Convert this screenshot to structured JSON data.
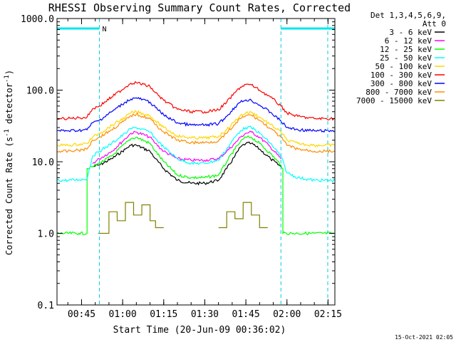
{
  "chart_data": {
    "type": "line",
    "title": "RHESSI Observing Summary Count Rates, Corrected",
    "xlabel": "Start Time (20-Jun-09 00:36:02)",
    "ylabel_main": "Corrected Count Rate (s",
    "ylabel_sup1": "-1",
    "ylabel_mid": " detector",
    "ylabel_sup2": "-1",
    "ylabel_end": ")",
    "y_scale": "log",
    "ylim": [
      0.1,
      1000
    ],
    "xlim_minutes": [
      36.03,
      137.5
    ],
    "y_ticks": [
      {
        "value": 0.1,
        "label": "0.1"
      },
      {
        "value": 1,
        "label": "1.0"
      },
      {
        "value": 10,
        "label": "10.0"
      },
      {
        "value": 100,
        "label": "100.0"
      },
      {
        "value": 1000,
        "label": "1000.0"
      }
    ],
    "x_ticks": [
      {
        "value": 45,
        "label": "00:45"
      },
      {
        "value": 60,
        "label": "01:00"
      },
      {
        "value": 75,
        "label": "01:15"
      },
      {
        "value": 90,
        "label": "01:30"
      },
      {
        "value": 105,
        "label": "01:45"
      },
      {
        "value": 120,
        "label": "02:00"
      },
      {
        "value": 135,
        "label": "02:15"
      }
    ],
    "legend_header": [
      "Det 1,3,4,5,6,9,",
      "Att 0"
    ],
    "legend_position": "right",
    "night_periods": [
      [
        36.03,
        51.5
      ],
      [
        117.8,
        137.5
      ]
    ],
    "night_marker": "N",
    "saa_lines": [
      36.03,
      51.5,
      117.8,
      134.9
    ],
    "series": [
      {
        "name": "3 - 6 keV",
        "color": "#000000",
        "x": [
          36.03,
          47.0,
          49.0,
          51.5,
          56,
          61,
          63,
          65,
          70,
          72,
          75,
          80,
          85,
          90,
          95,
          98,
          101,
          103,
          105,
          107,
          110,
          114,
          117.8,
          120,
          123,
          127,
          132,
          137.5
        ],
        "y": [
          null,
          null,
          8.5,
          9,
          11,
          15,
          17,
          17,
          14,
          11,
          8,
          5.5,
          5.0,
          5.0,
          5.5,
          8,
          12,
          16,
          18,
          18,
          15,
          11,
          8.5,
          null,
          null,
          null,
          null,
          null
        ]
      },
      {
        "name": "6 - 12 keV",
        "color": "#ff00ff",
        "x": [
          36.03,
          47.0,
          49.0,
          51.5,
          56,
          61,
          63,
          65,
          70,
          72,
          75,
          80,
          85,
          90,
          95,
          98,
          101,
          103,
          105,
          107,
          110,
          114,
          117.8,
          120,
          123,
          127,
          132,
          137.5
        ],
        "y": [
          null,
          null,
          9.5,
          11,
          14,
          21,
          25,
          26,
          22,
          18,
          14,
          11,
          10.5,
          10.5,
          11,
          14,
          18,
          22,
          25,
          26,
          22,
          16,
          11,
          null,
          null,
          null,
          null,
          null
        ]
      },
      {
        "name": "12 - 25 keV",
        "color": "#00ff00",
        "x": [
          36.03,
          44.0,
          47.0,
          47.01,
          49.0,
          51.5,
          56,
          61,
          63,
          65,
          70,
          72,
          75,
          80,
          85,
          90,
          95,
          98,
          101,
          103,
          105,
          107,
          110,
          114,
          117.8,
          118.5,
          118.51,
          124,
          130,
          137.5
        ],
        "y": [
          1.0,
          1.0,
          1.0,
          8,
          8.5,
          9.5,
          12,
          18,
          21,
          22,
          18,
          14,
          10,
          6.5,
          6.0,
          6.0,
          6.5,
          10,
          15,
          19,
          22,
          22,
          18,
          13,
          9,
          8,
          1.0,
          1.0,
          1.0,
          1.0
        ]
      },
      {
        "name": "25 - 50 keV",
        "color": "#00ffff",
        "x": [
          36.03,
          40,
          44,
          47.0,
          49.0,
          51.5,
          56,
          61,
          63,
          65,
          70,
          72,
          75,
          80,
          85,
          90,
          95,
          98,
          101,
          103,
          105,
          107,
          110,
          114,
          117.8,
          120,
          124,
          130,
          137.5
        ],
        "y": [
          5.5,
          5.5,
          5.6,
          5.8,
          12,
          14,
          18,
          25,
          29,
          30,
          26,
          21,
          16,
          11,
          9.5,
          9.5,
          10.5,
          15,
          22,
          27,
          30,
          30,
          25,
          18,
          12,
          7,
          6,
          5.5,
          5.5
        ]
      },
      {
        "name": "50 - 100 keV",
        "color": "#ffd700",
        "x": [
          36.03,
          40,
          44,
          47.0,
          49.0,
          51.5,
          56,
          61,
          63,
          65,
          70,
          72,
          75,
          80,
          85,
          90,
          95,
          98,
          101,
          103,
          105,
          107,
          110,
          114,
          117.8,
          120,
          124,
          130,
          137.5
        ],
        "y": [
          17,
          17,
          17.5,
          18,
          22,
          25,
          32,
          42,
          48,
          50,
          44,
          37,
          30,
          23,
          21.5,
          21.5,
          22.5,
          28,
          37,
          44,
          48,
          49,
          42,
          33,
          26,
          20,
          18,
          17,
          17
        ]
      },
      {
        "name": "100 - 300 keV",
        "color": "#ff0000",
        "x": [
          36.03,
          40,
          44,
          47.0,
          49.0,
          51.5,
          56,
          61,
          63,
          65,
          70,
          72,
          75,
          80,
          85,
          90,
          95,
          98,
          101,
          103,
          105,
          107,
          110,
          114,
          117.8,
          120,
          124,
          130,
          137.5
        ],
        "y": [
          40,
          40,
          41,
          42,
          55,
          60,
          80,
          110,
          125,
          128,
          112,
          92,
          72,
          54,
          50,
          50,
          53,
          68,
          92,
          110,
          120,
          118,
          100,
          80,
          60,
          48,
          43,
          40,
          40
        ]
      },
      {
        "name": "300 - 800 keV",
        "color": "#0000ff",
        "x": [
          36.03,
          40,
          44,
          47.0,
          49.0,
          51.5,
          56,
          61,
          63,
          65,
          70,
          72,
          75,
          80,
          85,
          90,
          95,
          98,
          101,
          103,
          105,
          107,
          110,
          114,
          117.8,
          120,
          124,
          130,
          137.5
        ],
        "y": [
          27,
          27,
          27.5,
          28,
          35,
          38,
          50,
          68,
          75,
          78,
          68,
          57,
          45,
          35,
          32.5,
          32.5,
          34,
          43,
          58,
          68,
          73,
          72,
          62,
          49,
          37,
          30,
          28,
          27,
          27
        ]
      },
      {
        "name": "800 - 7000 keV",
        "color": "#ff8c00",
        "x": [
          36.03,
          40,
          44,
          47.0,
          49.0,
          51.5,
          56,
          61,
          63,
          65,
          70,
          72,
          75,
          80,
          85,
          90,
          95,
          98,
          101,
          103,
          105,
          107,
          110,
          114,
          117.8,
          120,
          124,
          130,
          137.5
        ],
        "y": [
          14,
          14,
          14.5,
          15,
          20,
          22,
          28,
          38,
          44,
          46,
          40,
          33,
          26,
          20,
          18.5,
          18.5,
          19.5,
          25,
          33,
          40,
          44,
          45,
          38,
          29,
          22,
          17,
          15,
          14,
          14
        ]
      },
      {
        "name": "7000 - 15000 keV",
        "color": "#808000",
        "x": [
          36.03,
          51.0,
          51.01,
          55,
          55.01,
          58,
          58.01,
          61,
          61.01,
          64,
          64.01,
          67,
          67.01,
          70,
          70.01,
          72,
          72.01,
          75,
          75.01,
          80,
          80.01,
          95,
          95.01,
          98,
          98.01,
          101,
          101.01,
          104,
          104.01,
          107,
          107.01,
          110,
          110.01,
          113,
          113.01,
          137.5
        ],
        "y": [
          null,
          null,
          1.0,
          1.0,
          2.0,
          2.0,
          1.5,
          1.5,
          2.7,
          2.7,
          1.8,
          1.8,
          2.5,
          2.5,
          1.5,
          1.5,
          1.2,
          1.2,
          null,
          null,
          null,
          null,
          1.2,
          1.2,
          2.0,
          2.0,
          1.6,
          1.6,
          2.7,
          2.7,
          1.8,
          1.8,
          1.2,
          1.2,
          null,
          null
        ]
      }
    ]
  },
  "footer_timestamp": "15-Oct-2021 02:05"
}
